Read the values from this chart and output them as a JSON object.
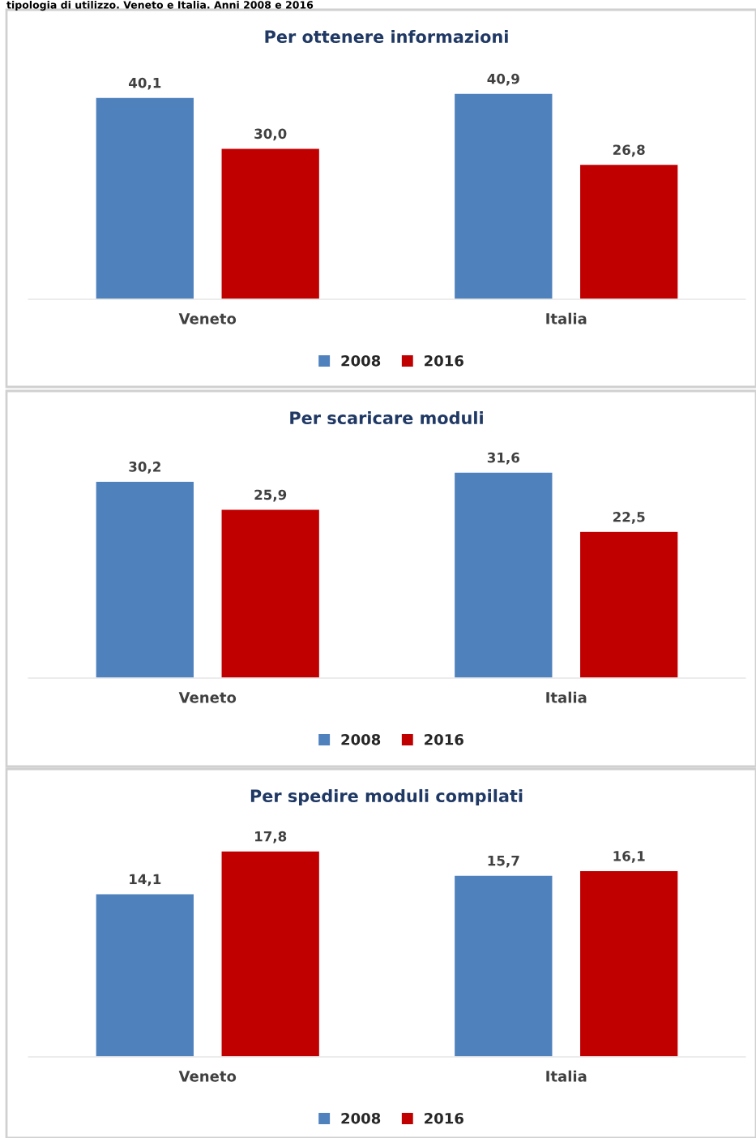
{
  "chart_data": [
    {
      "type": "bar",
      "title": "Per ottenere informazioni",
      "annotations": [
        "tipologia di utilizzo. Veneto e Italia. Anni 2008 e 2016"
      ],
      "categories": [
        "Veneto",
        "Italia"
      ],
      "series": [
        {
          "name": "2008",
          "color": "#4f81bd",
          "values": [
            40.1,
            40.9
          ],
          "value_labels": [
            "40,1",
            "40,9"
          ]
        },
        {
          "name": "2016",
          "color": "#c00000",
          "values": [
            30.0,
            26.8
          ],
          "value_labels": [
            "30,0",
            "26,8"
          ]
        }
      ],
      "legend": "bottom",
      "grid": false
    },
    {
      "type": "bar",
      "title": "Per scaricare moduli",
      "categories": [
        "Veneto",
        "Italia"
      ],
      "series": [
        {
          "name": "2008",
          "color": "#4f81bd",
          "values": [
            30.2,
            31.6
          ],
          "value_labels": [
            "30,2",
            "31,6"
          ]
        },
        {
          "name": "2016",
          "color": "#c00000",
          "values": [
            25.9,
            22.5
          ],
          "value_labels": [
            "25,9",
            "22,5"
          ]
        }
      ],
      "legend": "bottom",
      "grid": false
    },
    {
      "type": "bar",
      "title": "Per spedire moduli compilati",
      "categories": [
        "Veneto",
        "Italia"
      ],
      "series": [
        {
          "name": "2008",
          "color": "#4f81bd",
          "values": [
            14.1,
            15.7
          ],
          "value_labels": [
            "14,1",
            "15,7"
          ]
        },
        {
          "name": "2016",
          "color": "#c00000",
          "values": [
            17.8,
            16.1
          ],
          "value_labels": [
            "17,8",
            "16,1"
          ]
        }
      ],
      "legend": "bottom",
      "grid": false
    }
  ]
}
